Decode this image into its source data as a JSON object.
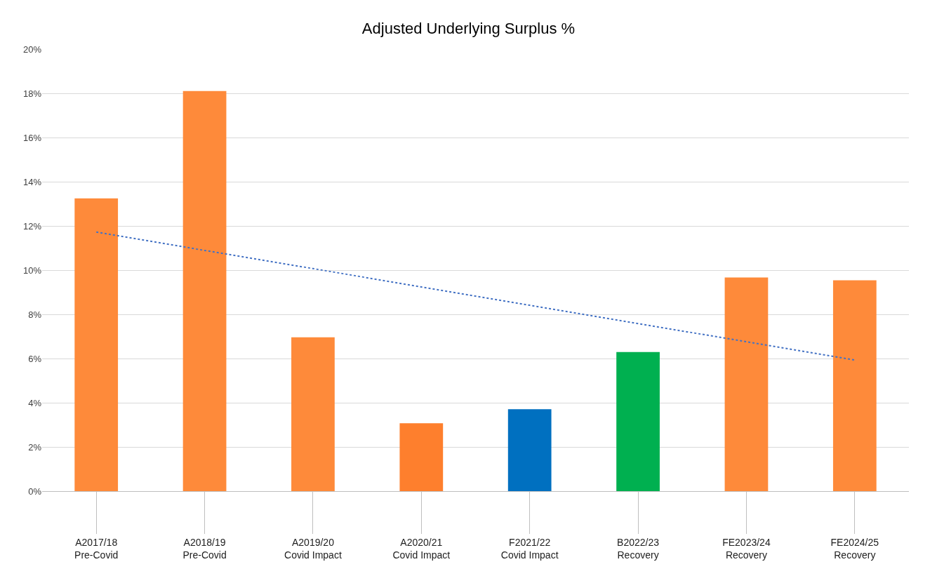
{
  "chart_data": {
    "type": "bar",
    "title": "Adjusted Underlying Surplus %",
    "categories": [
      "A2017/18\nPre-Covid",
      "A2018/19\nPre-Covid",
      "A2019/20\nCovid Impact",
      "A2020/21\nCovid Impact",
      "F2021/22\nCovid Impact",
      "B2022/23\nRecovery",
      "FE2023/24\nRecovery",
      "FE2024/25\nRecovery"
    ],
    "series": [
      {
        "values": [
          13.25,
          18.1,
          6.96,
          3.07,
          3.71,
          6.29,
          9.67,
          9.54
        ],
        "colors": [
          "#fe8a3a",
          "#fe8a3a",
          "#fe8a3a",
          "#fe7f2d",
          "#0070c0",
          "#00b050",
          "#fe8a3a",
          "#fe8a3a"
        ]
      },
      {
        "type": "line",
        "color": "#4472c4",
        "line_style": "dotted",
        "marker": "none",
        "values": [
          11.72,
          10.89,
          10.07,
          9.24,
          8.41,
          7.58,
          6.76,
          5.93
        ]
      }
    ],
    "ylim": [
      0,
      20
    ],
    "yticks": [
      {
        "value": 0,
        "label": "0%"
      },
      {
        "value": 2,
        "label": "2%"
      },
      {
        "value": 4,
        "label": "4%"
      },
      {
        "value": 6,
        "label": "6%"
      },
      {
        "value": 8,
        "label": "8%"
      },
      {
        "value": 10,
        "label": "10%"
      },
      {
        "value": 12,
        "label": "12%"
      },
      {
        "value": 14,
        "label": "14%"
      },
      {
        "value": 16,
        "label": "16%"
      },
      {
        "value": 18,
        "label": "18%"
      },
      {
        "value": 20,
        "label": "20%"
      }
    ],
    "grid": "y"
  }
}
